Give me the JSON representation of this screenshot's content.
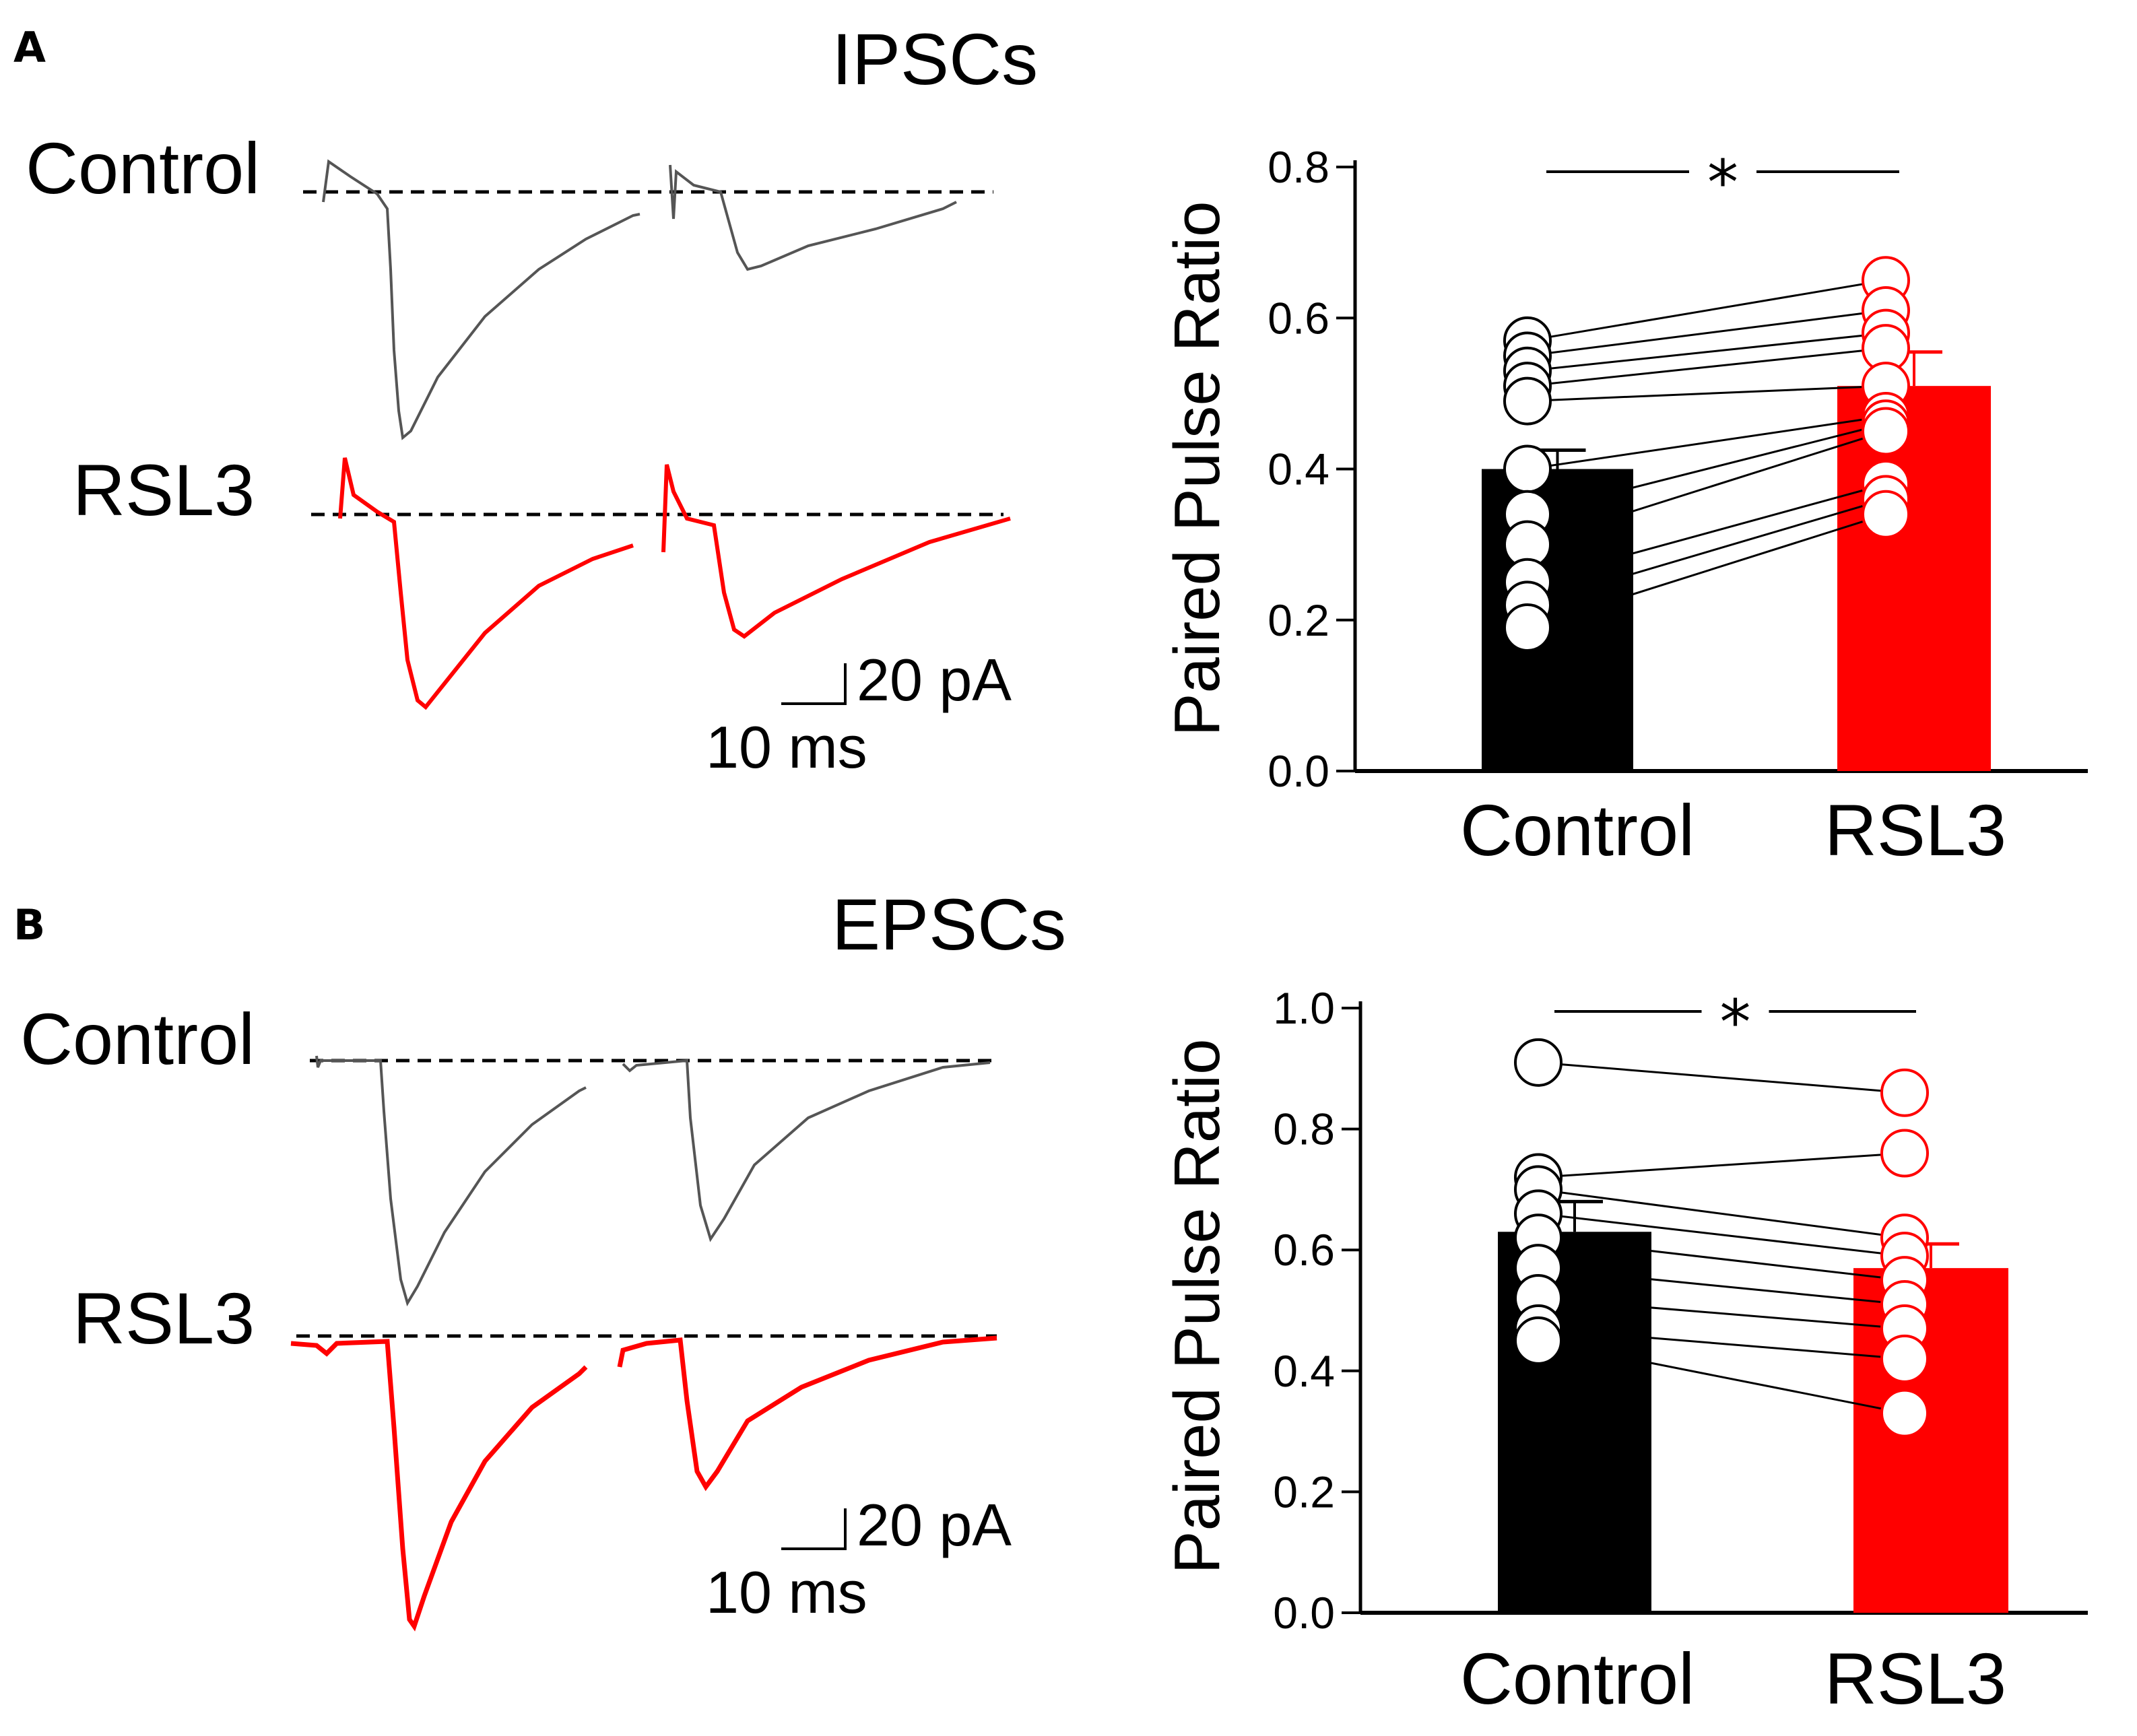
{
  "panels": [
    {
      "letter": "A",
      "title": "IPSCs",
      "trace_labels": {
        "control": "Control",
        "rsl3": "RSL3"
      },
      "scalebar": {
        "amplitude": "20 pA",
        "time": "10 ms"
      }
    },
    {
      "letter": "B",
      "title": "EPSCs",
      "trace_labels": {
        "control": "Control",
        "rsl3": "RSL3"
      },
      "scalebar": {
        "amplitude": "20 pA",
        "time": "10 ms"
      }
    }
  ],
  "colors": {
    "control": "#000000",
    "rsl3": "#ff0000",
    "control_trace": "#555555"
  },
  "chart_data": [
    {
      "type": "bar",
      "title": "IPSCs",
      "ylabel": "Paired Pulse Ratio",
      "xlabel": "",
      "categories": [
        "Control",
        "RSL3"
      ],
      "values": [
        0.4,
        0.51
      ],
      "errors": [
        0.025,
        0.045
      ],
      "ylim": [
        0.0,
        0.8
      ],
      "yticks": [
        0.0,
        0.2,
        0.4,
        0.6,
        0.8
      ],
      "ytick_labels": [
        "0.0",
        "0.2",
        "0.4",
        "0.6",
        "0.8"
      ],
      "significance": "*",
      "paired_points": [
        [
          0.57,
          0.65
        ],
        [
          0.55,
          0.61
        ],
        [
          0.53,
          0.58
        ],
        [
          0.51,
          0.56
        ],
        [
          0.49,
          0.51
        ],
        [
          0.4,
          0.47
        ],
        [
          0.34,
          0.46
        ],
        [
          0.3,
          0.45
        ],
        [
          0.25,
          0.38
        ],
        [
          0.22,
          0.36
        ],
        [
          0.19,
          0.34
        ]
      ]
    },
    {
      "type": "bar",
      "title": "EPSCs",
      "ylabel": "Paired Pulse Ratio",
      "xlabel": "",
      "categories": [
        "Control",
        "RSL3"
      ],
      "values": [
        0.63,
        0.57
      ],
      "errors": [
        0.05,
        0.04
      ],
      "ylim": [
        0.0,
        1.0
      ],
      "yticks": [
        0.0,
        0.2,
        0.4,
        0.6,
        0.8,
        1.0
      ],
      "ytick_labels": [
        "0.0",
        "0.2",
        "0.4",
        "0.6",
        "0.8",
        "1.0"
      ],
      "significance": "*",
      "paired_points": [
        [
          0.91,
          0.86
        ],
        [
          0.72,
          0.76
        ],
        [
          0.7,
          0.62
        ],
        [
          0.66,
          0.59
        ],
        [
          0.62,
          0.55
        ],
        [
          0.57,
          0.51
        ],
        [
          0.52,
          0.47
        ],
        [
          0.47,
          0.42
        ],
        [
          0.45,
          0.33
        ]
      ]
    }
  ]
}
